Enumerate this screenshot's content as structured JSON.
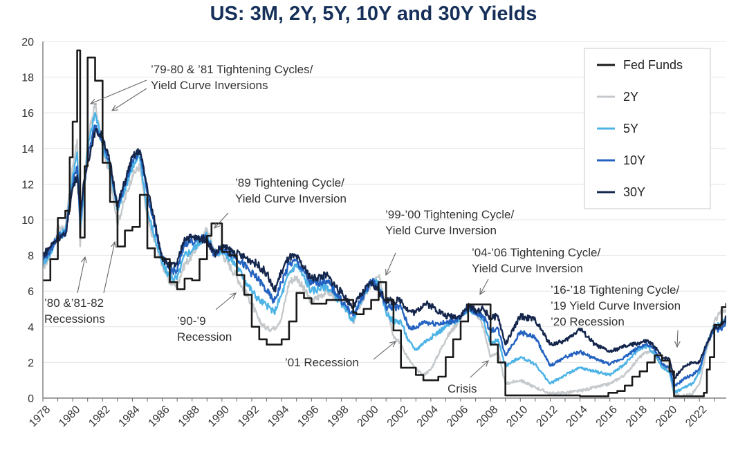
{
  "chart_data": {
    "type": "line",
    "title": "US: 3M, 2Y, 5Y, 10Y and 30Y Yields",
    "xlabel": "",
    "ylabel": "",
    "xlim": [
      1978,
      2023.8
    ],
    "ylim": [
      0,
      20
    ],
    "y_ticks": [
      0,
      2,
      4,
      6,
      8,
      10,
      12,
      14,
      16,
      18,
      20
    ],
    "x_ticks": [
      1978,
      1980,
      1982,
      1984,
      1986,
      1988,
      1990,
      1992,
      1994,
      1996,
      1998,
      2000,
      2002,
      2004,
      2006,
      2008,
      2010,
      2012,
      2014,
      2016,
      2018,
      2020,
      2022
    ],
    "grid": "horizontal",
    "legend_position": "top-right",
    "series": [
      {
        "name": "Fed Funds",
        "color": "#1a1a1a",
        "step": true,
        "x": [
          1978.0,
          1978.5,
          1979.0,
          1979.5,
          1979.8,
          1980.0,
          1980.3,
          1980.5,
          1980.8,
          1981.0,
          1981.5,
          1982.0,
          1982.5,
          1983.0,
          1983.5,
          1984.0,
          1984.5,
          1985.0,
          1985.5,
          1986.0,
          1986.5,
          1987.0,
          1987.5,
          1988.0,
          1988.5,
          1989.0,
          1989.3,
          1990.0,
          1990.5,
          1991.0,
          1991.5,
          1992.0,
          1992.5,
          1993.0,
          1993.5,
          1994.0,
          1994.5,
          1995.0,
          1995.5,
          1996.0,
          1997.0,
          1998.0,
          1998.8,
          1999.0,
          1999.5,
          2000.0,
          2000.5,
          2001.0,
          2001.5,
          2002.0,
          2002.5,
          2003.0,
          2003.5,
          2004.0,
          2004.5,
          2005.0,
          2005.5,
          2006.0,
          2006.5,
          2007.0,
          2007.5,
          2008.0,
          2008.5,
          2009.0,
          2010.0,
          2012.0,
          2014.0,
          2015.9,
          2016.5,
          2017.0,
          2017.5,
          2018.0,
          2018.5,
          2019.0,
          2019.5,
          2020.0,
          2020.3,
          2021.0,
          2022.0,
          2022.3,
          2022.5,
          2022.7,
          2023.0,
          2023.5,
          2023.8
        ],
        "y": [
          6.6,
          7.8,
          10.1,
          10.5,
          13.5,
          15.5,
          19.5,
          9.0,
          13.0,
          19.1,
          17.8,
          13.2,
          11.0,
          8.5,
          9.4,
          9.6,
          11.4,
          8.4,
          7.9,
          7.8,
          6.5,
          6.1,
          6.7,
          6.6,
          7.8,
          9.1,
          9.8,
          8.2,
          8.0,
          6.9,
          5.8,
          4.0,
          3.3,
          3.0,
          3.0,
          3.3,
          4.3,
          5.9,
          5.6,
          5.3,
          5.5,
          5.5,
          4.8,
          4.7,
          5.0,
          5.5,
          6.5,
          5.5,
          3.8,
          1.7,
          1.7,
          1.3,
          1.0,
          1.0,
          1.2,
          2.3,
          3.3,
          4.3,
          5.25,
          5.25,
          5.25,
          3.0,
          2.0,
          0.15,
          0.15,
          0.15,
          0.1,
          0.3,
          0.4,
          0.7,
          1.2,
          1.5,
          2.0,
          2.4,
          2.1,
          1.5,
          0.1,
          0.1,
          0.1,
          0.3,
          1.6,
          2.3,
          4.1,
          5.1,
          5.33
        ]
      },
      {
        "name": "2Y",
        "color": "#c5c9cc",
        "x": [
          1978.0,
          1978.5,
          1979.0,
          1979.5,
          1980.0,
          1980.3,
          1980.5,
          1980.8,
          1981.0,
          1981.5,
          1982.0,
          1982.5,
          1983.0,
          1984.0,
          1984.5,
          1985.0,
          1986.0,
          1986.5,
          1987.0,
          1987.5,
          1988.0,
          1989.0,
          1989.5,
          1990.0,
          1991.0,
          1992.0,
          1992.5,
          1993.0,
          1993.5,
          1994.0,
          1994.5,
          1995.0,
          1996.0,
          1997.0,
          1998.0,
          1998.8,
          1999.0,
          2000.0,
          2000.5,
          2001.0,
          2001.5,
          2002.0,
          2002.5,
          2003.0,
          2003.5,
          2004.0,
          2005.0,
          2006.0,
          2006.5,
          2007.0,
          2007.5,
          2008.0,
          2008.5,
          2009.0,
          2010.0,
          2011.0,
          2012.0,
          2013.0,
          2014.0,
          2015.0,
          2016.0,
          2017.0,
          2018.0,
          2018.5,
          2019.0,
          2019.5,
          2020.0,
          2020.3,
          2021.0,
          2021.5,
          2022.0,
          2022.5,
          2023.0,
          2023.5,
          2023.8
        ],
        "y": [
          7.3,
          8.0,
          9.5,
          9.6,
          13.0,
          14.5,
          8.5,
          12.5,
          14.5,
          16.5,
          14.0,
          12.5,
          9.8,
          12.5,
          13.0,
          10.0,
          7.5,
          6.5,
          6.4,
          7.5,
          8.0,
          9.5,
          8.2,
          8.1,
          6.8,
          5.3,
          4.3,
          3.9,
          3.9,
          4.5,
          6.5,
          6.8,
          5.4,
          6.0,
          5.5,
          4.2,
          4.8,
          6.4,
          6.8,
          5.4,
          3.5,
          3.0,
          2.2,
          1.6,
          1.3,
          1.6,
          3.3,
          4.5,
          5.1,
          4.9,
          4.0,
          2.3,
          2.6,
          0.8,
          1.0,
          0.6,
          0.25,
          0.3,
          0.4,
          0.6,
          0.8,
          1.3,
          2.3,
          2.6,
          2.6,
          1.9,
          1.5,
          0.2,
          0.15,
          0.2,
          0.8,
          2.8,
          4.3,
          4.9,
          4.8
        ]
      },
      {
        "name": "5Y",
        "color": "#4db3e6",
        "x": [
          1978.0,
          1978.5,
          1979.0,
          1979.5,
          1980.0,
          1980.3,
          1980.5,
          1980.8,
          1981.0,
          1981.5,
          1982.0,
          1982.5,
          1983.0,
          1984.0,
          1984.5,
          1985.0,
          1986.0,
          1986.5,
          1987.0,
          1987.5,
          1988.0,
          1989.0,
          1989.5,
          1990.0,
          1991.0,
          1992.0,
          1992.5,
          1993.0,
          1993.5,
          1994.0,
          1994.5,
          1995.0,
          1996.0,
          1997.0,
          1998.0,
          1998.8,
          1999.0,
          2000.0,
          2000.5,
          2001.0,
          2001.5,
          2002.0,
          2002.5,
          2003.0,
          2003.5,
          2004.0,
          2005.0,
          2006.0,
          2006.5,
          2007.0,
          2007.5,
          2008.0,
          2008.5,
          2009.0,
          2010.0,
          2011.0,
          2012.0,
          2013.0,
          2014.0,
          2015.0,
          2016.0,
          2017.0,
          2018.0,
          2018.5,
          2019.0,
          2019.5,
          2020.0,
          2020.3,
          2021.0,
          2021.5,
          2022.0,
          2022.5,
          2023.0,
          2023.5,
          2023.8
        ],
        "y": [
          7.6,
          8.1,
          9.2,
          9.3,
          12.5,
          13.8,
          9.5,
          12.0,
          14.0,
          16.0,
          14.2,
          12.8,
          10.5,
          13.0,
          13.5,
          10.5,
          7.5,
          6.8,
          6.7,
          8.0,
          8.3,
          9.2,
          8.1,
          8.3,
          7.4,
          6.0,
          5.5,
          5.2,
          4.8,
          5.8,
          7.0,
          7.5,
          6.0,
          6.3,
          5.3,
          4.3,
          4.9,
          6.6,
          6.4,
          4.8,
          4.3,
          4.3,
          3.2,
          2.7,
          3.1,
          3.4,
          4.0,
          4.5,
          5.0,
          4.8,
          4.4,
          3.0,
          3.3,
          1.8,
          2.3,
          1.9,
          0.8,
          1.3,
          1.7,
          1.5,
          1.3,
          1.9,
          2.8,
          2.9,
          2.5,
          1.7,
          1.5,
          0.3,
          0.6,
          0.8,
          1.4,
          3.0,
          4.0,
          4.2,
          4.5
        ]
      },
      {
        "name": "10Y",
        "color": "#2362c0",
        "x": [
          1978.0,
          1978.5,
          1979.0,
          1979.5,
          1980.0,
          1980.3,
          1980.5,
          1980.8,
          1981.0,
          1981.5,
          1982.0,
          1982.5,
          1983.0,
          1984.0,
          1984.5,
          1985.0,
          1986.0,
          1986.5,
          1987.0,
          1987.5,
          1988.0,
          1989.0,
          1989.5,
          1990.0,
          1991.0,
          1992.0,
          1992.5,
          1993.0,
          1993.5,
          1994.0,
          1994.5,
          1995.0,
          1996.0,
          1997.0,
          1998.0,
          1998.8,
          1999.0,
          2000.0,
          2000.5,
          2001.0,
          2001.5,
          2002.0,
          2002.5,
          2003.0,
          2003.5,
          2004.0,
          2005.0,
          2006.0,
          2006.5,
          2007.0,
          2007.5,
          2008.0,
          2008.5,
          2009.0,
          2010.0,
          2011.0,
          2012.0,
          2013.0,
          2014.0,
          2015.0,
          2016.0,
          2017.0,
          2018.0,
          2018.5,
          2019.0,
          2019.5,
          2020.0,
          2020.3,
          2021.0,
          2021.5,
          2022.0,
          2022.5,
          2023.0,
          2023.5,
          2023.8
        ],
        "y": [
          7.8,
          8.3,
          9.1,
          9.2,
          12.0,
          13.0,
          10.0,
          12.2,
          13.5,
          15.3,
          14.5,
          13.0,
          10.7,
          13.3,
          13.8,
          11.5,
          7.8,
          7.2,
          7.1,
          8.7,
          8.8,
          9.0,
          8.0,
          8.4,
          7.9,
          7.0,
          6.6,
          6.0,
          5.4,
          6.5,
          7.5,
          7.7,
          6.4,
          6.6,
          5.5,
          4.6,
          5.0,
          6.6,
          6.2,
          5.1,
          5.1,
          5.1,
          4.0,
          3.9,
          4.3,
          4.2,
          4.2,
          4.5,
          5.1,
          4.8,
          4.6,
          3.8,
          3.9,
          2.4,
          3.7,
          3.4,
          1.8,
          2.3,
          2.6,
          2.2,
          1.9,
          2.3,
          2.9,
          3.0,
          2.7,
          1.9,
          1.7,
          0.6,
          1.1,
          1.3,
          1.6,
          3.0,
          3.9,
          3.8,
          4.3
        ]
      },
      {
        "name": "30Y",
        "color": "#15264d",
        "x": [
          1978.0,
          1978.5,
          1979.0,
          1979.5,
          1980.0,
          1980.3,
          1980.5,
          1980.8,
          1981.0,
          1981.5,
          1982.0,
          1982.5,
          1983.0,
          1984.0,
          1984.5,
          1985.0,
          1986.0,
          1986.5,
          1987.0,
          1987.5,
          1988.0,
          1989.0,
          1989.5,
          1990.0,
          1991.0,
          1992.0,
          1992.5,
          1993.0,
          1993.5,
          1994.0,
          1994.5,
          1995.0,
          1996.0,
          1997.0,
          1998.0,
          1998.8,
          1999.0,
          2000.0,
          2000.5,
          2001.0,
          2001.5,
          2002.0,
          2002.5,
          2003.0,
          2003.5,
          2004.0,
          2005.0,
          2006.0,
          2006.5,
          2007.0,
          2007.5,
          2008.0,
          2008.5,
          2009.0,
          2010.0,
          2011.0,
          2012.0,
          2013.0,
          2014.0,
          2015.0,
          2016.0,
          2017.0,
          2018.0,
          2018.5,
          2019.0,
          2019.5,
          2020.0,
          2020.3,
          2021.0,
          2021.5,
          2022.0,
          2022.5,
          2023.0,
          2023.5,
          2023.8
        ],
        "y": [
          8.0,
          8.5,
          9.0,
          9.1,
          11.8,
          12.5,
          10.5,
          12.3,
          13.2,
          15.0,
          14.7,
          13.2,
          10.8,
          13.5,
          13.9,
          11.8,
          7.9,
          7.4,
          7.5,
          9.0,
          9.0,
          8.9,
          8.1,
          8.5,
          8.1,
          7.7,
          7.4,
          7.0,
          6.0,
          7.1,
          7.9,
          7.9,
          6.7,
          6.9,
          5.9,
          5.1,
          5.4,
          6.5,
          6.0,
          5.5,
          5.4,
          5.5,
          4.9,
          4.8,
          5.3,
          5.2,
          4.6,
          4.6,
          5.2,
          4.9,
          5.0,
          4.5,
          4.6,
          3.0,
          4.6,
          4.4,
          3.0,
          3.2,
          3.9,
          3.0,
          2.6,
          2.9,
          3.1,
          3.2,
          2.9,
          2.3,
          2.2,
          1.1,
          1.8,
          2.0,
          2.0,
          3.1,
          3.9,
          4.1,
          4.5
        ]
      }
    ],
    "annotations": [
      {
        "lines": [
          "’79-80 & ’81 Tightening Cycles/",
          "Yield Curve Inversions"
        ],
        "x": 1981.6,
        "y": 16.5
      },
      {
        "lines": [
          "’89 Tightening Cycle/",
          "Yield Curve Inversion"
        ],
        "x": 1989.2,
        "y": 9.7
      },
      {
        "lines": [
          "’99-’00 Tightening Cycle/",
          "Yield Curve Inversion"
        ],
        "x": 2000.8,
        "y": 6.9
      },
      {
        "lines": [
          "’04-’06 Tightening Cycle/",
          "Yield Curve Inversion"
        ],
        "x": 2007.2,
        "y": 5.6
      },
      {
        "lines": [
          "’16-’18 Tightening Cycle/",
          "’19 Yield Curve Inversion",
          "’20 Recession"
        ],
        "x": 2020.0,
        "y": 2.7
      },
      {
        "lines": [
          "’80 &’81-82",
          "Recessions"
        ],
        "x": 1980.5,
        "y": 7.9
      },
      {
        "lines": [
          "’90-’9",
          "Recession"
        ],
        "x": 1991.2,
        "y": 6.1
      },
      {
        "lines": [
          "’01 Recession"
        ],
        "x": 2001.3,
        "y": 3.3
      },
      {
        "lines": [
          "Crisis"
        ],
        "x": 2008.0,
        "y": 2.5
      }
    ]
  }
}
